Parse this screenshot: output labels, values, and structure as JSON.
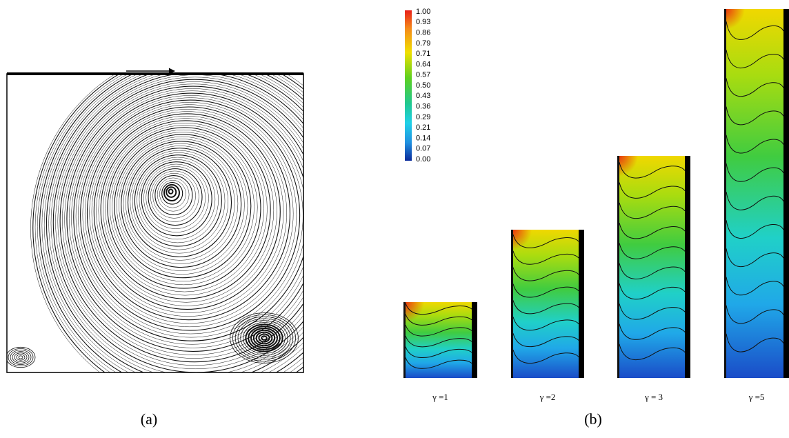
{
  "panels": [
    {
      "label": "(a)"
    },
    {
      "label": "(b)",
      "colorbar": {
        "labels": [
          "1.00",
          "0.93",
          "0.86",
          "0.79",
          "0.71",
          "0.64",
          "0.57",
          "0.50",
          "0.43",
          "0.36",
          "0.29",
          "0.21",
          "0.14",
          "0.07",
          "0.00"
        ]
      },
      "cases": [
        {
          "caption": "γ =1"
        },
        {
          "caption": "γ =2"
        },
        {
          "caption": "γ = 3"
        },
        {
          "caption": "γ =5"
        }
      ]
    }
  ]
}
